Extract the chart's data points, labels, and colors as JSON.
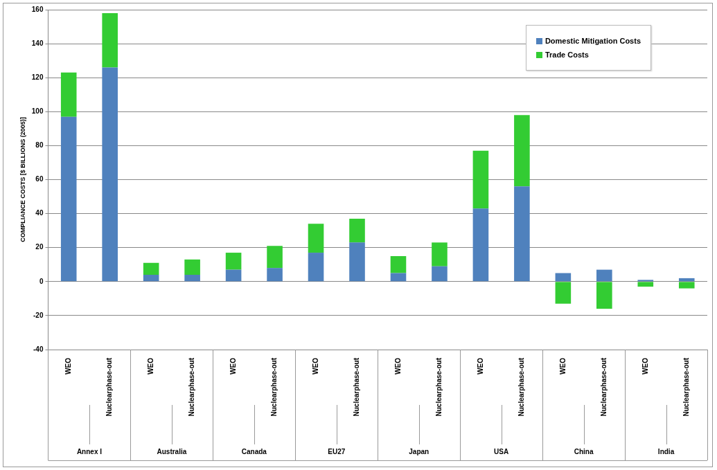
{
  "chart_data": {
    "type": "bar",
    "stacked": true,
    "ylabel": "COMPLIANCE COSTS [$ BILLIONS (2005)]",
    "categories": [
      "WEO",
      "Nuclearphase-out",
      "WEO",
      "Nuclearphase-out",
      "WEO",
      "Nuclearphase-out",
      "WEO",
      "Nuclearphase-out",
      "WEO",
      "Nuclearphase-out",
      "WEO",
      "Nuclearphase-out",
      "WEO",
      "Nuclearphase-out",
      "WEO",
      "Nuclearphase-out"
    ],
    "annotations": [
      "Annex I",
      "Australia",
      "Canada",
      "EU27",
      "Japan",
      "USA",
      "China",
      "India"
    ],
    "series": [
      {
        "name": "Domestic Mitigation Costs",
        "color": "#4f81bd",
        "values": [
          97,
          126,
          4,
          4,
          7,
          8,
          17,
          23,
          5,
          9,
          43,
          56,
          5,
          7,
          1,
          2
        ]
      },
      {
        "name": "Trade Costs",
        "color": "#33cc33",
        "values": [
          26,
          32,
          7,
          9,
          10,
          13,
          17,
          14,
          10,
          14,
          34,
          42,
          -13,
          -16,
          -3,
          -4
        ]
      }
    ],
    "ylim": [
      -40,
      160
    ],
    "yticks": [
      -40,
      -20,
      0,
      20,
      40,
      60,
      80,
      100,
      120,
      140,
      160
    ],
    "grid": "y",
    "legend": "top right"
  }
}
